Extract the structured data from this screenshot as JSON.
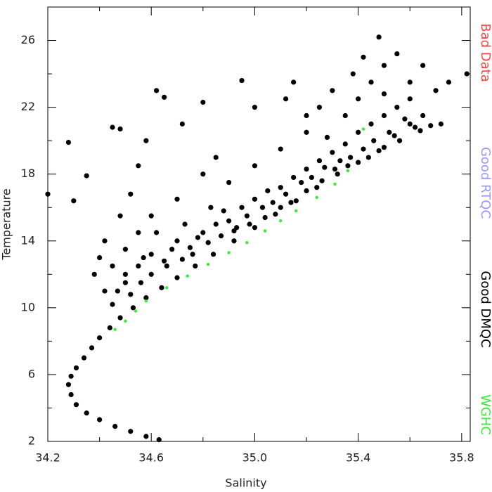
{
  "chart_data": {
    "type": "scatter",
    "x_label": "Salinity",
    "y_label": "Temperature",
    "xlim": [
      34.2,
      35.833
    ],
    "ylim": [
      2,
      28
    ],
    "xticks": [
      34.2,
      34.6,
      {
        "value": 35,
        "label": "35.0"
      },
      35.4,
      35.8
    ],
    "yticks": [
      2,
      6,
      10,
      14,
      18,
      22,
      26
    ],
    "xminor": [
      34.4,
      34.8,
      35.2,
      35.6
    ],
    "yminor": [
      4,
      8,
      12,
      16,
      20,
      24
    ],
    "series": [
      {
        "name": "Bad Data",
        "color": "#ff4040",
        "x": [],
        "y": []
      },
      {
        "name": "Good RTQC",
        "color": "#9999ff",
        "x": [],
        "y": []
      },
      {
        "name": "Good DMQC",
        "color": "#000000",
        "x": [
          34.63,
          34.58,
          34.52,
          34.46,
          34.4,
          34.35,
          34.31,
          34.29,
          34.28,
          34.29,
          34.31,
          34.34,
          34.37,
          34.4,
          34.44,
          34.48,
          34.53,
          34.58,
          34.64,
          34.7,
          34.77,
          34.84,
          34.92,
          35.0,
          35.08,
          35.16,
          35.24,
          35.32,
          35.4,
          35.48,
          35.56,
          35.64,
          35.72,
          34.45,
          34.5,
          34.55,
          34.6,
          34.65,
          34.7,
          34.75,
          34.8,
          34.85,
          34.9,
          34.95,
          35.0,
          35.05,
          35.1,
          35.15,
          35.2,
          35.25,
          35.3,
          35.35,
          35.4,
          35.45,
          35.5,
          35.55,
          35.6,
          35.35,
          35.4,
          35.45,
          35.5,
          35.42,
          35.48,
          35.3,
          35.25,
          35.2,
          35.1,
          35.0,
          34.9,
          34.85,
          34.8,
          34.7,
          34.6,
          34.55,
          34.5,
          34.45,
          34.4,
          34.38,
          34.42,
          34.48,
          34.52,
          34.55,
          34.58,
          34.62,
          34.65,
          34.48,
          34.45,
          34.35,
          34.3,
          34.28,
          34.2,
          34.72,
          34.8,
          34.95,
          35.0,
          35.12,
          35.2,
          35.15,
          35.28,
          35.55,
          35.6,
          35.65,
          35.7,
          35.75,
          35.82,
          35.65,
          35.6,
          35.5,
          35.38,
          34.5,
          34.57,
          34.62,
          34.68,
          34.73,
          34.78,
          34.83,
          34.88,
          34.93,
          34.97,
          35.03,
          35.07,
          35.12,
          35.18,
          35.22,
          35.27,
          35.33,
          35.37,
          35.42,
          35.46,
          35.52,
          35.58,
          34.42,
          34.47,
          34.52,
          34.56,
          34.6,
          34.66,
          34.72,
          34.76,
          34.82,
          34.87,
          34.92,
          34.98,
          35.04,
          35.1,
          35.14,
          35.2,
          35.26,
          35.31,
          35.36,
          35.44,
          35.5,
          35.54,
          35.62,
          35.68
        ],
        "y": [
          2.1,
          2.3,
          2.6,
          2.9,
          3.3,
          3.7,
          4.2,
          4.8,
          5.4,
          5.9,
          6.4,
          7.0,
          7.6,
          8.2,
          8.8,
          9.4,
          10.0,
          10.6,
          11.2,
          11.8,
          12.5,
          13.2,
          14.0,
          14.8,
          15.6,
          16.4,
          17.2,
          18.0,
          18.7,
          19.4,
          20.0,
          20.6,
          21.0,
          10.2,
          11.5,
          12.5,
          13.2,
          12.8,
          14.0,
          13.6,
          14.5,
          15.0,
          15.2,
          16.0,
          16.5,
          17.0,
          17.2,
          17.8,
          18.3,
          18.8,
          19.3,
          19.8,
          20.5,
          21.0,
          21.5,
          22.0,
          22.5,
          21.5,
          22.5,
          23.5,
          24.5,
          25.0,
          26.2,
          23.0,
          22.0,
          20.5,
          19.5,
          18.5,
          17.5,
          19.0,
          18.0,
          16.5,
          15.5,
          14.5,
          13.5,
          12.5,
          13.0,
          12.0,
          14.0,
          15.5,
          16.8,
          18.5,
          20.0,
          23.0,
          22.6,
          20.7,
          20.8,
          17.9,
          16.4,
          19.9,
          16.8,
          21.0,
          22.3,
          23.6,
          22.0,
          22.5,
          21.5,
          23.5,
          20.2,
          25.2,
          23.5,
          24.5,
          23.0,
          23.5,
          24.0,
          21.5,
          21.0,
          22.8,
          24.0,
          12.0,
          13.0,
          14.5,
          13.5,
          15.0,
          14.2,
          16.0,
          15.8,
          14.8,
          15.5,
          16.0,
          16.3,
          16.8,
          17.5,
          17.8,
          18.4,
          18.8,
          19.0,
          19.5,
          20.0,
          20.5,
          21.3,
          11.0,
          11.0,
          10.8,
          11.5,
          12.0,
          12.5,
          12.9,
          13.2,
          13.9,
          14.3,
          14.6,
          15.0,
          15.4,
          16.0,
          16.3,
          17.0,
          17.6,
          18.3,
          18.5,
          19.0,
          19.6,
          20.3,
          20.8,
          20.9
        ]
      },
      {
        "name": "WGHC",
        "color": "#33ee33",
        "x": [
          34.46,
          34.5,
          34.54,
          34.58,
          34.66,
          34.74,
          34.82,
          34.9,
          34.97,
          35.04,
          35.1,
          35.16,
          35.24,
          35.31,
          35.36,
          35.42
        ],
        "y": [
          8.7,
          9.2,
          9.8,
          10.4,
          11.2,
          11.9,
          12.6,
          13.3,
          13.9,
          14.6,
          15.2,
          15.8,
          16.6,
          17.4,
          18.2,
          20.7
        ]
      }
    ]
  }
}
